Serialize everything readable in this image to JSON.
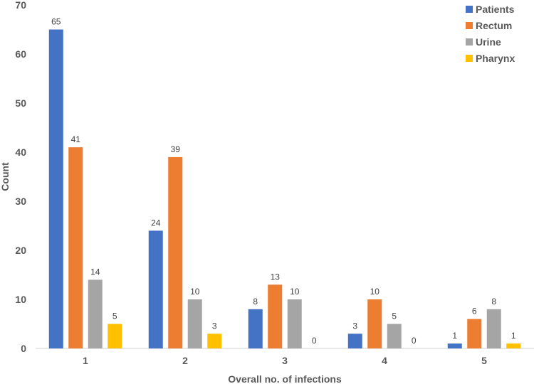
{
  "chart_data": {
    "type": "bar",
    "title": "",
    "xlabel": "Overall no. of infections",
    "ylabel": "Count",
    "ylim": [
      0,
      70
    ],
    "yticks": [
      0,
      10,
      20,
      30,
      40,
      50,
      60,
      70
    ],
    "grid": false,
    "legend_position": "top-right",
    "categories": [
      "1",
      "2",
      "3",
      "4",
      "5"
    ],
    "series": [
      {
        "name": "Patients",
        "color": "#4472C4",
        "values": [
          65,
          24,
          8,
          3,
          1
        ]
      },
      {
        "name": "Rectum",
        "color": "#ED7D31",
        "values": [
          41,
          39,
          13,
          10,
          6
        ]
      },
      {
        "name": "Urine",
        "color": "#A5A5A5",
        "values": [
          14,
          10,
          10,
          5,
          8
        ]
      },
      {
        "name": "Pharynx",
        "color": "#FFC000",
        "values": [
          5,
          3,
          0,
          0,
          1
        ]
      }
    ]
  }
}
